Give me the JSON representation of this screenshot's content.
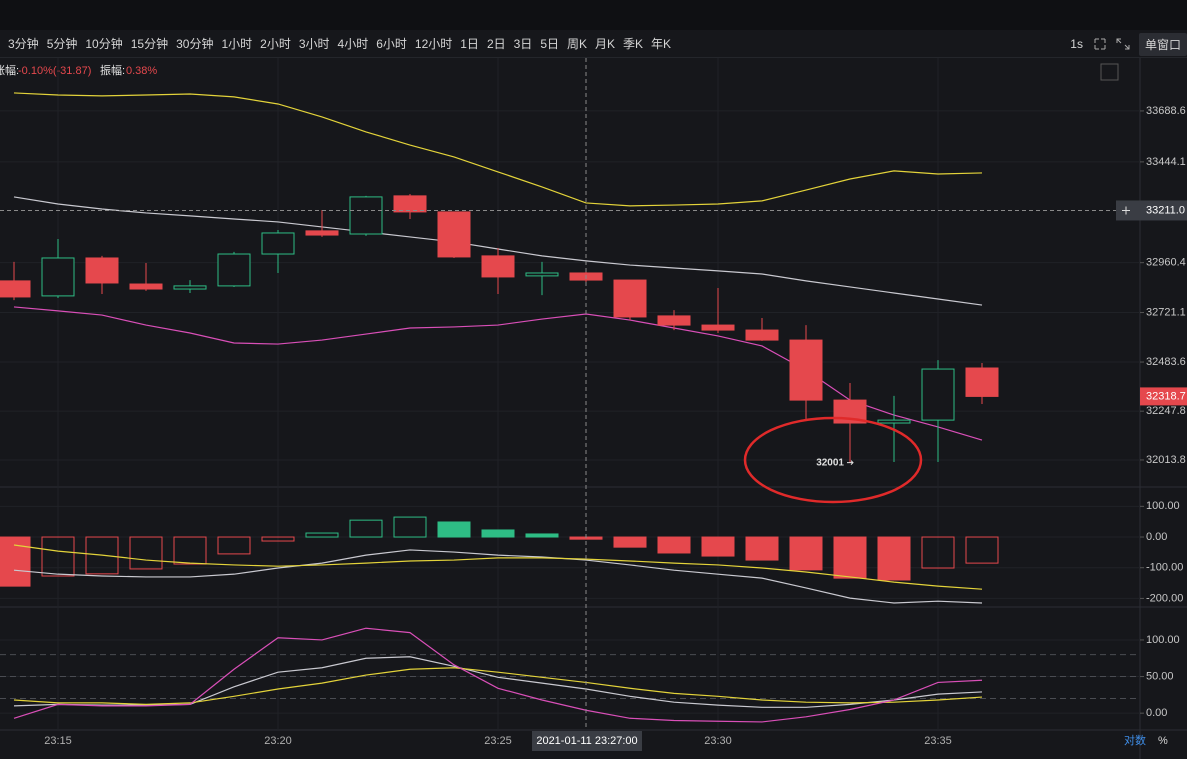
{
  "toolbar": {
    "intervals": [
      "3分钟",
      "5分钟",
      "10分钟",
      "15分钟",
      "30分钟",
      "1小时",
      "2小时",
      "3小时",
      "4小时",
      "6小时",
      "12小时",
      "1日",
      "2日",
      "3日",
      "5日",
      "周K",
      "月K",
      "季K",
      "年K"
    ],
    "refresh": "1s",
    "window": "单窗口"
  },
  "info": {
    "change_label": "涨幅:",
    "change": "-0.10%(-31.87)",
    "amplitude_label": "振幅:",
    "amplitude": "0.38%"
  },
  "scale_options": [
    "对数",
    "%"
  ],
  "chart_data": {
    "type": "candlestick",
    "categories": [
      null,
      "23:15",
      null,
      null,
      null,
      null,
      "23:20",
      null,
      null,
      null,
      null,
      "23:25",
      null,
      null,
      null,
      null,
      "23:30",
      null,
      null,
      null,
      null,
      "23:35",
      null
    ],
    "open": [
      32873,
      32801,
      32983,
      32858,
      32834,
      32849,
      33002,
      33113,
      33098,
      33281,
      33204,
      32993,
      32897,
      32911,
      32877,
      32705,
      32661,
      32637,
      32589,
      32301,
      32191,
      32205,
      32455
    ],
    "high": [
      32964,
      33074,
      32993,
      32959,
      32877,
      33012,
      33117,
      33213,
      33281,
      33290,
      33204,
      33031,
      32964,
      32925,
      32877,
      32733,
      32839,
      32695,
      32661,
      32383,
      32321,
      32493,
      32479
    ],
    "low": [
      32781,
      32791,
      32810,
      32825,
      32815,
      32844,
      32911,
      33084,
      33089,
      33170,
      32983,
      32810,
      32805,
      32863,
      32685,
      32637,
      32623,
      32585,
      32205,
      32001,
      32004,
      32004,
      32282
    ],
    "close": [
      32796,
      32983,
      32863,
      32834,
      32849,
      33002,
      33103,
      33093,
      33276,
      33204,
      32988,
      32892,
      32911,
      32877,
      32700,
      32661,
      32637,
      32589,
      32301,
      32191,
      32205,
      32450,
      32318.7
    ],
    "up_color": "#2ebd85",
    "down_color": "#e5484d",
    "ylim": [
      31884,
      33933
    ],
    "yticks": [
      32013.8,
      32247.8,
      32483.6,
      32721.1,
      32960.4,
      33444.1,
      33688.6
    ],
    "crosshair": {
      "time": "2021-01-11 23:27:00",
      "price": {
        "value": 33211,
        "label": "33211.0"
      }
    },
    "series": [
      {
        "color": "#e3d33a",
        "values": [
          33775,
          33765,
          33761,
          33765,
          33770,
          33756,
          33722,
          33660,
          33588,
          33525,
          33468,
          33396,
          33324,
          33247,
          33233,
          33237,
          33242,
          33257,
          33309,
          33362,
          33401,
          33386,
          33391
        ]
      },
      {
        "color": "#c9c9d0",
        "values": [
          33276,
          33242,
          33218,
          33199,
          33185,
          33170,
          33156,
          33132,
          33108,
          33084,
          33060,
          33026,
          32993,
          32969,
          32949,
          32935,
          32921,
          32906,
          32873,
          32844,
          32815,
          32786,
          32757
        ]
      },
      {
        "color": "#d94fb8",
        "values": [
          32748,
          32729,
          32709,
          32661,
          32623,
          32575,
          32570,
          32589,
          32618,
          32647,
          32652,
          32661,
          32690,
          32714,
          32685,
          32647,
          32609,
          32561,
          32445,
          32301,
          32229,
          32172,
          32109
        ]
      }
    ],
    "macd": {
      "ylim": [
        -228,
        163
      ],
      "yticks": [
        {
          "value": 100,
          "label": "100.00"
        },
        {
          "value": 0,
          "label": "0.00"
        },
        {
          "value": -100,
          "label": "-100.00"
        },
        {
          "value": -200,
          "label": "-200.00"
        }
      ],
      "histogram": [
        -160,
        -127,
        -120,
        -104,
        -88,
        -55,
        -13,
        13,
        55,
        65,
        49,
        23,
        10,
        -7,
        -33,
        -52,
        -62,
        -75,
        -107,
        -134,
        -140,
        -101,
        -85
      ],
      "hollow": [
        false,
        true,
        true,
        true,
        true,
        true,
        true,
        true,
        true,
        true,
        false,
        false,
        false,
        false,
        false,
        false,
        false,
        false,
        false,
        false,
        false,
        true,
        true
      ],
      "series": [
        {
          "color": "#c9c9d0",
          "values": [
            -108,
            -121,
            -127,
            -130,
            -130,
            -121,
            -101,
            -85,
            -59,
            -42,
            -49,
            -59,
            -65,
            -75,
            -91,
            -108,
            -121,
            -134,
            -166,
            -199,
            -215,
            -209,
            -215
          ]
        },
        {
          "color": "#e3d33a",
          "values": [
            -26,
            -46,
            -59,
            -75,
            -85,
            -91,
            -95,
            -91,
            -85,
            -78,
            -75,
            -68,
            -68,
            -72,
            -78,
            -85,
            -91,
            -101,
            -114,
            -130,
            -147,
            -160,
            -170
          ]
        }
      ]
    },
    "kdj": {
      "ylim": [
        -23,
        145
      ],
      "yticks": [
        {
          "value": 100,
          "label": "100.00"
        },
        {
          "value": 50,
          "label": "50.00"
        },
        {
          "value": 0,
          "label": "0.00"
        }
      ],
      "levels": [
        20,
        50,
        80
      ],
      "series": [
        {
          "color": "#c9c9d0",
          "values": [
            10,
            12,
            11,
            11,
            12,
            36,
            56,
            62,
            75,
            77,
            64,
            49,
            41,
            33,
            23,
            15,
            11,
            8,
            8,
            12,
            18,
            26,
            29
          ]
        },
        {
          "color": "#e3d33a",
          "values": [
            18,
            14,
            14,
            12,
            14,
            23,
            33,
            41,
            52,
            60,
            62,
            56,
            49,
            42,
            34,
            27,
            23,
            18,
            15,
            14,
            15,
            18,
            22
          ]
        },
        {
          "color": "#d94fb8",
          "values": [
            -7,
            12,
            10,
            10,
            12,
            60,
            103,
            100,
            116,
            110,
            66,
            34,
            18,
            4,
            -7,
            -10,
            -11,
            -12,
            -5,
            5,
            18,
            42,
            45
          ]
        }
      ]
    }
  }
}
